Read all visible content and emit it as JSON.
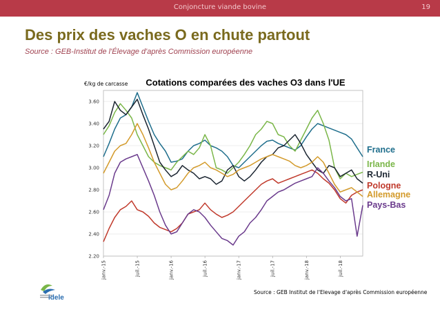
{
  "header": {
    "section": "Conjoncture viande bovine",
    "page_number": "19"
  },
  "slide": {
    "title": "Des prix des vaches O en chute partout",
    "subtitle": "Source : GEB-Institut de l'Élevage d'après Commission européenne"
  },
  "logo": {
    "text": "idele"
  },
  "chart_data": {
    "type": "line",
    "title": "Cotations comparées des vaches O3 dans l'UE",
    "ylabel": "€/kg de carcasse",
    "xlabel": "",
    "ylim": [
      2.2,
      3.7
    ],
    "yticks": [
      "2.20",
      "2.40",
      "2.60",
      "2.80",
      "3.00",
      "3.20",
      "3.40",
      "3.60"
    ],
    "ytick_values": [
      2.2,
      2.4,
      2.6,
      2.8,
      3.0,
      3.2,
      3.4,
      3.6
    ],
    "xticks": [
      "janv.-15",
      "juil.-15",
      "janv.-16",
      "juil.-16",
      "janv.-17",
      "juil.-17",
      "janv.-18",
      "juil.-18"
    ],
    "xtick_months": [
      0,
      6,
      12,
      18,
      24,
      30,
      36,
      42
    ],
    "x_range_months": [
      0,
      46
    ],
    "source_note": "Source : GEB Institut de l'Elevage d'après Commission européenne",
    "series": [
      {
        "name": "France",
        "color": "#1f6e8c",
        "points": [
          [
            0,
            3.1
          ],
          [
            1,
            3.22
          ],
          [
            2,
            3.35
          ],
          [
            3,
            3.45
          ],
          [
            4,
            3.48
          ],
          [
            5,
            3.55
          ],
          [
            6,
            3.68
          ],
          [
            7,
            3.55
          ],
          [
            8,
            3.42
          ],
          [
            9,
            3.3
          ],
          [
            10,
            3.22
          ],
          [
            11,
            3.15
          ],
          [
            12,
            3.05
          ],
          [
            13,
            3.06
          ],
          [
            14,
            3.08
          ],
          [
            15,
            3.15
          ],
          [
            16,
            3.2
          ],
          [
            17,
            3.22
          ],
          [
            18,
            3.25
          ],
          [
            19,
            3.2
          ],
          [
            20,
            3.18
          ],
          [
            21,
            3.15
          ],
          [
            22,
            3.1
          ],
          [
            23,
            3.02
          ],
          [
            24,
            3.0
          ],
          [
            25,
            3.05
          ],
          [
            26,
            3.1
          ],
          [
            27,
            3.15
          ],
          [
            28,
            3.2
          ],
          [
            29,
            3.24
          ],
          [
            30,
            3.25
          ],
          [
            31,
            3.22
          ],
          [
            32,
            3.2
          ],
          [
            33,
            3.18
          ],
          [
            34,
            3.16
          ],
          [
            35,
            3.2
          ],
          [
            36,
            3.28
          ],
          [
            37,
            3.35
          ],
          [
            38,
            3.4
          ],
          [
            39,
            3.38
          ],
          [
            40,
            3.36
          ],
          [
            41,
            3.34
          ],
          [
            42,
            3.32
          ],
          [
            43,
            3.3
          ],
          [
            44,
            3.26
          ],
          [
            45,
            3.18
          ],
          [
            46,
            3.1
          ]
        ]
      },
      {
        "name": "Irlande",
        "color": "#7ab648",
        "points": [
          [
            0,
            3.3
          ],
          [
            1,
            3.38
          ],
          [
            2,
            3.5
          ],
          [
            3,
            3.58
          ],
          [
            4,
            3.52
          ],
          [
            5,
            3.45
          ],
          [
            6,
            3.3
          ],
          [
            7,
            3.2
          ],
          [
            8,
            3.1
          ],
          [
            9,
            3.05
          ],
          [
            10,
            3.02
          ],
          [
            11,
            3.0
          ],
          [
            12,
            2.98
          ],
          [
            13,
            3.05
          ],
          [
            14,
            3.1
          ],
          [
            15,
            3.15
          ],
          [
            16,
            3.12
          ],
          [
            17,
            3.18
          ],
          [
            18,
            3.3
          ],
          [
            19,
            3.2
          ],
          [
            20,
            3.0
          ],
          [
            21,
            2.98
          ],
          [
            22,
            2.95
          ],
          [
            23,
            3.0
          ],
          [
            24,
            3.05
          ],
          [
            25,
            3.12
          ],
          [
            26,
            3.2
          ],
          [
            27,
            3.3
          ],
          [
            28,
            3.35
          ],
          [
            29,
            3.42
          ],
          [
            30,
            3.4
          ],
          [
            31,
            3.3
          ],
          [
            32,
            3.28
          ],
          [
            33,
            3.2
          ],
          [
            34,
            3.15
          ],
          [
            35,
            3.25
          ],
          [
            36,
            3.35
          ],
          [
            37,
            3.45
          ],
          [
            38,
            3.52
          ],
          [
            39,
            3.4
          ],
          [
            40,
            3.25
          ],
          [
            41,
            3.0
          ],
          [
            42,
            2.9
          ],
          [
            43,
            2.95
          ],
          [
            44,
            2.92
          ],
          [
            45,
            2.94
          ],
          [
            46,
            2.96
          ]
        ]
      },
      {
        "name": "R-Uni",
        "color": "#1a2430",
        "points": [
          [
            0,
            3.35
          ],
          [
            1,
            3.42
          ],
          [
            2,
            3.6
          ],
          [
            3,
            3.52
          ],
          [
            4,
            3.48
          ],
          [
            5,
            3.55
          ],
          [
            6,
            3.62
          ],
          [
            7,
            3.48
          ],
          [
            8,
            3.35
          ],
          [
            9,
            3.2
          ],
          [
            10,
            3.05
          ],
          [
            11,
            2.98
          ],
          [
            12,
            2.92
          ],
          [
            13,
            2.95
          ],
          [
            14,
            3.02
          ],
          [
            15,
            2.98
          ],
          [
            16,
            2.95
          ],
          [
            17,
            2.9
          ],
          [
            18,
            2.92
          ],
          [
            19,
            2.9
          ],
          [
            20,
            2.85
          ],
          [
            21,
            2.88
          ],
          [
            22,
            2.98
          ],
          [
            23,
            3.02
          ],
          [
            24,
            2.92
          ],
          [
            25,
            2.88
          ],
          [
            26,
            2.92
          ],
          [
            27,
            2.98
          ],
          [
            28,
            3.05
          ],
          [
            29,
            3.1
          ],
          [
            30,
            3.12
          ],
          [
            31,
            3.18
          ],
          [
            32,
            3.2
          ],
          [
            33,
            3.25
          ],
          [
            34,
            3.3
          ],
          [
            35,
            3.22
          ],
          [
            36,
            3.12
          ],
          [
            37,
            3.05
          ],
          [
            38,
            2.98
          ],
          [
            39,
            2.95
          ],
          [
            40,
            3.02
          ],
          [
            41,
            3.0
          ],
          [
            42,
            2.92
          ],
          [
            43,
            2.95
          ],
          [
            44,
            2.98
          ],
          [
            45,
            2.9
          ],
          [
            46,
            2.86
          ]
        ]
      },
      {
        "name": "Pologne",
        "color": "#c0392b",
        "points": [
          [
            0,
            2.33
          ],
          [
            1,
            2.45
          ],
          [
            2,
            2.55
          ],
          [
            3,
            2.62
          ],
          [
            4,
            2.65
          ],
          [
            5,
            2.7
          ],
          [
            6,
            2.62
          ],
          [
            7,
            2.6
          ],
          [
            8,
            2.56
          ],
          [
            9,
            2.5
          ],
          [
            10,
            2.46
          ],
          [
            11,
            2.44
          ],
          [
            12,
            2.42
          ],
          [
            13,
            2.45
          ],
          [
            14,
            2.5
          ],
          [
            15,
            2.58
          ],
          [
            16,
            2.6
          ],
          [
            17,
            2.62
          ],
          [
            18,
            2.68
          ],
          [
            19,
            2.62
          ],
          [
            20,
            2.58
          ],
          [
            21,
            2.55
          ],
          [
            22,
            2.57
          ],
          [
            23,
            2.6
          ],
          [
            24,
            2.65
          ],
          [
            25,
            2.7
          ],
          [
            26,
            2.75
          ],
          [
            27,
            2.8
          ],
          [
            28,
            2.85
          ],
          [
            29,
            2.88
          ],
          [
            30,
            2.9
          ],
          [
            31,
            2.86
          ],
          [
            32,
            2.88
          ],
          [
            33,
            2.9
          ],
          [
            34,
            2.92
          ],
          [
            35,
            2.94
          ],
          [
            36,
            2.96
          ],
          [
            37,
            2.98
          ],
          [
            38,
            2.95
          ],
          [
            39,
            2.9
          ],
          [
            40,
            2.86
          ],
          [
            41,
            2.8
          ],
          [
            42,
            2.72
          ],
          [
            43,
            2.68
          ],
          [
            44,
            2.75
          ],
          [
            45,
            2.78
          ],
          [
            46,
            2.8
          ]
        ]
      },
      {
        "name": "Allemagne",
        "color": "#d39a2a",
        "points": [
          [
            0,
            2.95
          ],
          [
            1,
            3.05
          ],
          [
            2,
            3.15
          ],
          [
            3,
            3.2
          ],
          [
            4,
            3.22
          ],
          [
            5,
            3.3
          ],
          [
            6,
            3.4
          ],
          [
            7,
            3.3
          ],
          [
            8,
            3.18
          ],
          [
            9,
            3.05
          ],
          [
            10,
            2.95
          ],
          [
            11,
            2.85
          ],
          [
            12,
            2.8
          ],
          [
            13,
            2.82
          ],
          [
            14,
            2.88
          ],
          [
            15,
            2.95
          ],
          [
            16,
            3.0
          ],
          [
            17,
            3.02
          ],
          [
            18,
            3.05
          ],
          [
            19,
            3.0
          ],
          [
            20,
            2.98
          ],
          [
            21,
            2.95
          ],
          [
            22,
            2.92
          ],
          [
            23,
            2.94
          ],
          [
            24,
            2.98
          ],
          [
            25,
            3.0
          ],
          [
            26,
            3.02
          ],
          [
            27,
            3.05
          ],
          [
            28,
            3.08
          ],
          [
            29,
            3.1
          ],
          [
            30,
            3.12
          ],
          [
            31,
            3.1
          ],
          [
            32,
            3.08
          ],
          [
            33,
            3.06
          ],
          [
            34,
            3.02
          ],
          [
            35,
            3.0
          ],
          [
            36,
            3.02
          ],
          [
            37,
            3.05
          ],
          [
            38,
            3.1
          ],
          [
            39,
            3.05
          ],
          [
            40,
            2.95
          ],
          [
            41,
            2.85
          ],
          [
            42,
            2.78
          ],
          [
            43,
            2.8
          ],
          [
            44,
            2.82
          ],
          [
            45,
            2.78
          ],
          [
            46,
            2.74
          ]
        ]
      },
      {
        "name": "Pays-Bas",
        "color": "#6a3a8c",
        "points": [
          [
            0,
            2.62
          ],
          [
            1,
            2.75
          ],
          [
            2,
            2.95
          ],
          [
            3,
            3.05
          ],
          [
            4,
            3.08
          ],
          [
            5,
            3.1
          ],
          [
            6,
            3.12
          ],
          [
            7,
            3.0
          ],
          [
            8,
            2.88
          ],
          [
            9,
            2.75
          ],
          [
            10,
            2.6
          ],
          [
            11,
            2.48
          ],
          [
            12,
            2.4
          ],
          [
            13,
            2.42
          ],
          [
            14,
            2.5
          ],
          [
            15,
            2.58
          ],
          [
            16,
            2.62
          ],
          [
            17,
            2.6
          ],
          [
            18,
            2.55
          ],
          [
            19,
            2.48
          ],
          [
            20,
            2.42
          ],
          [
            21,
            2.36
          ],
          [
            22,
            2.34
          ],
          [
            23,
            2.3
          ],
          [
            24,
            2.38
          ],
          [
            25,
            2.42
          ],
          [
            26,
            2.5
          ],
          [
            27,
            2.55
          ],
          [
            28,
            2.62
          ],
          [
            29,
            2.7
          ],
          [
            30,
            2.74
          ],
          [
            31,
            2.78
          ],
          [
            32,
            2.8
          ],
          [
            33,
            2.83
          ],
          [
            34,
            2.86
          ],
          [
            35,
            2.88
          ],
          [
            36,
            2.9
          ],
          [
            37,
            2.92
          ],
          [
            38,
            3.0
          ],
          [
            39,
            2.95
          ],
          [
            40,
            2.88
          ],
          [
            41,
            2.82
          ],
          [
            42,
            2.74
          ],
          [
            43,
            2.7
          ],
          [
            44,
            2.72
          ],
          [
            45,
            2.38
          ],
          [
            46,
            2.66
          ]
        ]
      }
    ]
  }
}
